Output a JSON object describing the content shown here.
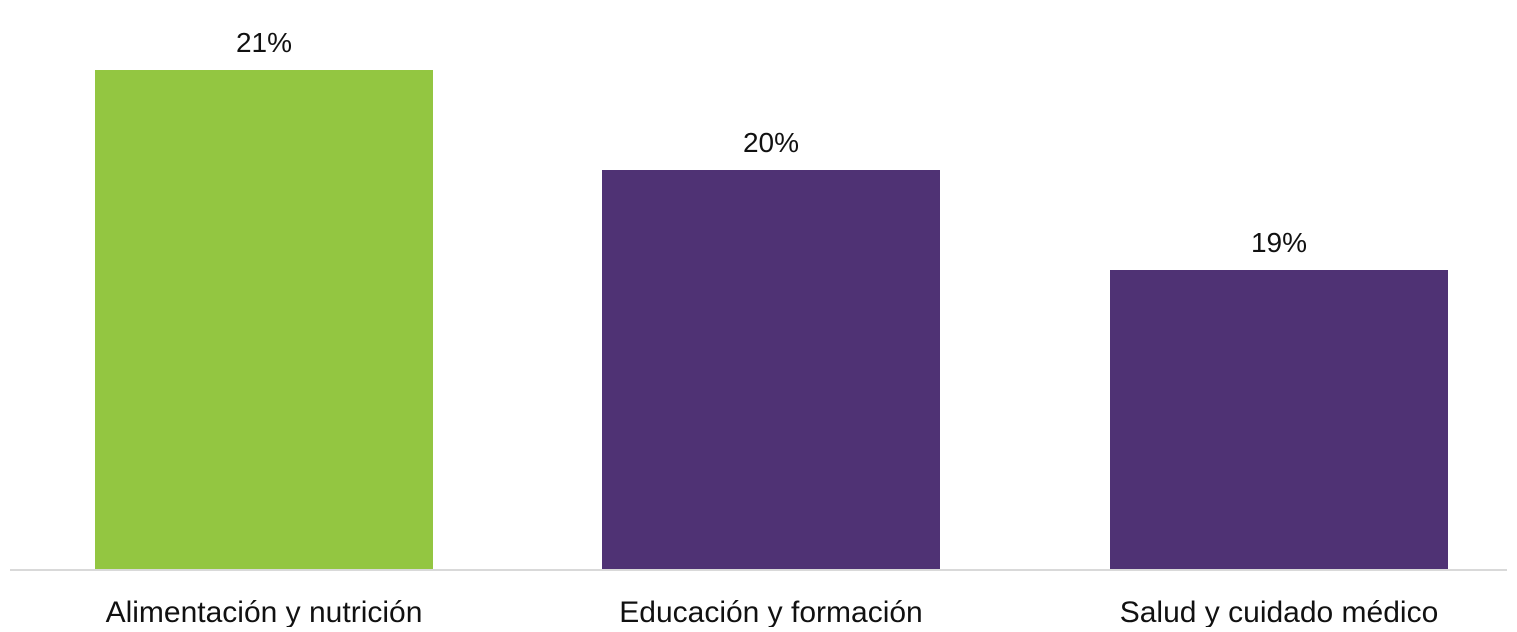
{
  "chart_data": {
    "type": "bar",
    "title": "",
    "xlabel": "",
    "ylabel": "",
    "categories": [
      "Alimentación y nutrición",
      "Educación y formación",
      "Salud y cuidado médico"
    ],
    "values": [
      21,
      20,
      19
    ],
    "value_labels": [
      "21%",
      "20%",
      "19%"
    ],
    "bar_colors": [
      "#93c641",
      "#4f3274",
      "#4f3274"
    ],
    "ylim": [
      16,
      21.3
    ],
    "grid": false,
    "axis_line_color": "#d9d9d9"
  }
}
